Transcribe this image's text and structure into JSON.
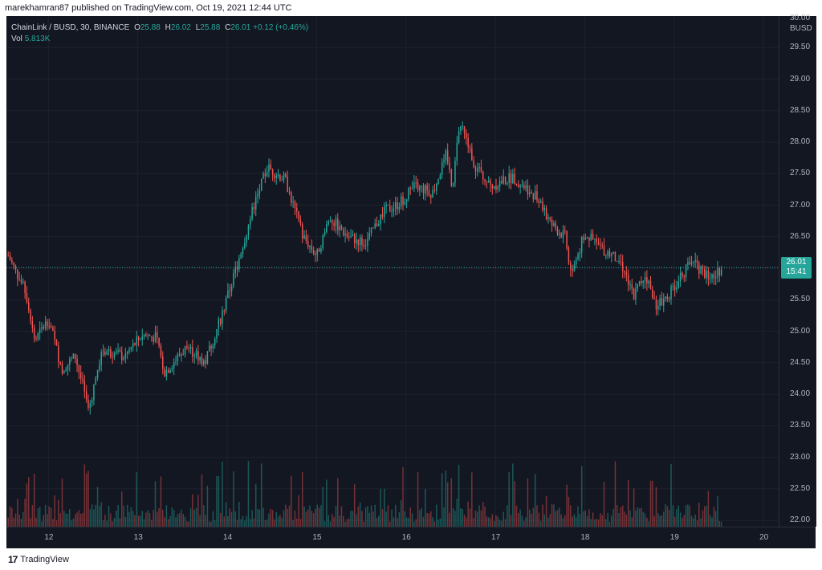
{
  "publisher_line": "marekhamran87 published on TradingView.com, Oct 19, 2021 12:44 UTC",
  "symbol_line": "ChainLink / BUSD, 30, BINANCE",
  "ohlc": {
    "o_label": "O",
    "o": "25.88",
    "h_label": "H",
    "h": "26.02",
    "l_label": "L",
    "l": "25.88",
    "c_label": "C",
    "c": "26.01",
    "change": "+0.12 (+0.46%)"
  },
  "volume": {
    "label": "Vol",
    "value": "5.813K"
  },
  "price_axis": {
    "currency": "BUSD",
    "top_label": "30.00",
    "current_price": "26.01",
    "countdown": "15:41"
  },
  "footer": {
    "logo_mark": "17",
    "logo_text": "TradingView"
  },
  "colors": {
    "up": "#26a69a",
    "down": "#ef5350",
    "background": "#131722",
    "grid": "#1e222d",
    "text": "#b2b5be"
  },
  "chart_data": {
    "type": "candlestick",
    "title": "ChainLink / BUSD, 30, BINANCE",
    "interval_minutes": 30,
    "ylim": [
      21.9,
      30.0
    ],
    "y_ticks": [
      "29.50",
      "29.00",
      "28.50",
      "28.00",
      "27.50",
      "27.00",
      "26.50",
      "26.00",
      "25.50",
      "25.00",
      "24.50",
      "24.00",
      "23.50",
      "23.00",
      "22.50",
      "22.00"
    ],
    "x_ticks": [
      "12",
      "13",
      "14",
      "15",
      "16",
      "17",
      "18",
      "19",
      "20"
    ],
    "x_range_days": [
      11.53,
      20.17
    ],
    "last_price": 26.01,
    "price_waypoints": [
      {
        "day": 11.55,
        "price": 26.2
      },
      {
        "day": 11.75,
        "price": 25.6
      },
      {
        "day": 11.85,
        "price": 24.85
      },
      {
        "day": 12.0,
        "price": 25.2
      },
      {
        "day": 12.15,
        "price": 24.4
      },
      {
        "day": 12.3,
        "price": 24.6
      },
      {
        "day": 12.45,
        "price": 23.75
      },
      {
        "day": 12.6,
        "price": 24.7
      },
      {
        "day": 12.85,
        "price": 24.6
      },
      {
        "day": 13.05,
        "price": 24.95
      },
      {
        "day": 13.2,
        "price": 24.9
      },
      {
        "day": 13.3,
        "price": 24.35
      },
      {
        "day": 13.55,
        "price": 24.75
      },
      {
        "day": 13.75,
        "price": 24.5
      },
      {
        "day": 13.95,
        "price": 25.3
      },
      {
        "day": 14.1,
        "price": 26.0
      },
      {
        "day": 14.3,
        "price": 27.0
      },
      {
        "day": 14.45,
        "price": 27.6
      },
      {
        "day": 14.65,
        "price": 27.4
      },
      {
        "day": 14.85,
        "price": 26.5
      },
      {
        "day": 15.0,
        "price": 26.2
      },
      {
        "day": 15.15,
        "price": 26.8
      },
      {
        "day": 15.35,
        "price": 26.5
      },
      {
        "day": 15.55,
        "price": 26.4
      },
      {
        "day": 15.75,
        "price": 26.9
      },
      {
        "day": 15.9,
        "price": 27.0
      },
      {
        "day": 16.1,
        "price": 27.3
      },
      {
        "day": 16.3,
        "price": 27.2
      },
      {
        "day": 16.45,
        "price": 27.8
      },
      {
        "day": 16.52,
        "price": 27.3
      },
      {
        "day": 16.6,
        "price": 28.3
      },
      {
        "day": 16.78,
        "price": 27.6
      },
      {
        "day": 16.95,
        "price": 27.3
      },
      {
        "day": 17.2,
        "price": 27.45
      },
      {
        "day": 17.45,
        "price": 27.15
      },
      {
        "day": 17.62,
        "price": 26.7
      },
      {
        "day": 17.78,
        "price": 26.5
      },
      {
        "day": 17.85,
        "price": 25.9
      },
      {
        "day": 18.0,
        "price": 26.55
      },
      {
        "day": 18.2,
        "price": 26.3
      },
      {
        "day": 18.4,
        "price": 26.1
      },
      {
        "day": 18.55,
        "price": 25.6
      },
      {
        "day": 18.68,
        "price": 25.9
      },
      {
        "day": 18.8,
        "price": 25.4
      },
      {
        "day": 18.95,
        "price": 25.6
      },
      {
        "day": 19.12,
        "price": 25.95
      },
      {
        "day": 19.22,
        "price": 26.15
      },
      {
        "day": 19.3,
        "price": 25.95
      },
      {
        "day": 19.45,
        "price": 25.85
      },
      {
        "day": 19.53,
        "price": 26.01
      }
    ]
  }
}
